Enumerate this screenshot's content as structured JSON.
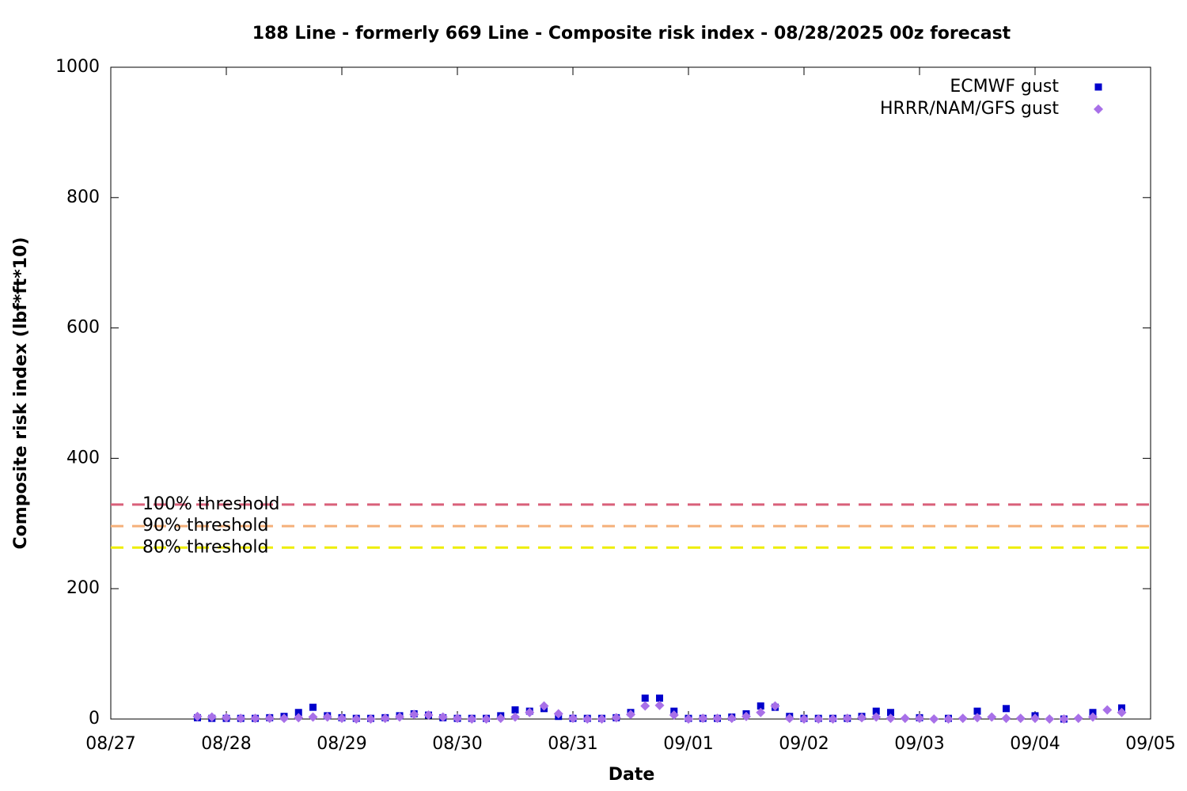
{
  "chart_data": {
    "type": "scatter",
    "title": "188 Line - formerly 669 Line - Composite risk index - 08/28/2025 00z forecast",
    "xlabel": "Date",
    "ylabel": "Composite risk index (lbf*ft*10)",
    "xlim": [
      0,
      9
    ],
    "xticks": [
      {
        "value": 0,
        "label": "08/27"
      },
      {
        "value": 1,
        "label": "08/28"
      },
      {
        "value": 2,
        "label": "08/29"
      },
      {
        "value": 3,
        "label": "08/30"
      },
      {
        "value": 4,
        "label": "08/31"
      },
      {
        "value": 5,
        "label": "09/01"
      },
      {
        "value": 6,
        "label": "09/02"
      },
      {
        "value": 7,
        "label": "09/03"
      },
      {
        "value": 8,
        "label": "09/04"
      },
      {
        "value": 9,
        "label": "09/05"
      }
    ],
    "ylim": [
      0,
      1000
    ],
    "yticks": [
      0,
      200,
      400,
      600,
      800,
      1000
    ],
    "legend": "top right",
    "thresholds": [
      {
        "label": "100% threshold",
        "value": 329,
        "color": "#d9607a"
      },
      {
        "label": "90% threshold",
        "value": 296,
        "color": "#f5b07a"
      },
      {
        "label": "80% threshold",
        "value": 263,
        "color": "#eeee00"
      }
    ],
    "series": [
      {
        "name": "ECMWF gust",
        "color": "#0000cc",
        "marker": "square",
        "x": [
          0.75,
          0.875,
          1,
          1.125,
          1.25,
          1.375,
          1.5,
          1.625,
          1.75,
          1.875,
          2,
          2.125,
          2.25,
          2.375,
          2.5,
          2.625,
          2.75,
          2.875,
          3,
          3.125,
          3.25,
          3.375,
          3.5,
          3.625,
          3.75,
          3.875,
          4,
          4.125,
          4.25,
          4.375,
          4.5,
          4.625,
          4.75,
          4.875,
          5,
          5.125,
          5.25,
          5.375,
          5.5,
          5.625,
          5.75,
          5.875,
          6,
          6.125,
          6.25,
          6.375,
          6.5,
          6.625,
          6.75,
          7,
          7.25,
          7.5,
          7.75,
          8,
          8.25,
          8.5,
          8.75
        ],
        "values": [
          2,
          1,
          1,
          1,
          1,
          2,
          4,
          10,
          18,
          5,
          2,
          1,
          1,
          2,
          5,
          8,
          6,
          2,
          1,
          1,
          1,
          5,
          14,
          12,
          16,
          4,
          1,
          1,
          1,
          2,
          10,
          32,
          32,
          12,
          1,
          1,
          1,
          3,
          8,
          20,
          18,
          4,
          1,
          1,
          1,
          1,
          4,
          12,
          10,
          2,
          1,
          12,
          16,
          5,
          0,
          10,
          17
        ]
      },
      {
        "name": "HRRR/NAM/GFS gust",
        "color": "#a870e8",
        "marker": "diamond",
        "x": [
          0.75,
          0.875,
          1,
          1.125,
          1.25,
          1.375,
          1.5,
          1.625,
          1.75,
          1.875,
          2,
          2.125,
          2.25,
          2.375,
          2.5,
          2.625,
          2.75,
          2.875,
          3,
          3.125,
          3.25,
          3.375,
          3.5,
          3.625,
          3.75,
          3.875,
          4,
          4.125,
          4.25,
          4.375,
          4.5,
          4.625,
          4.75,
          4.875,
          5,
          5.125,
          5.25,
          5.375,
          5.5,
          5.625,
          5.75,
          5.875,
          6,
          6.125,
          6.25,
          6.375,
          6.5,
          6.625,
          6.75,
          6.875,
          7,
          7.125,
          7.25,
          7.375,
          7.5,
          7.625,
          7.75,
          7.875,
          8,
          8.125,
          8.25,
          8.375,
          8.5,
          8.625,
          8.75
        ],
        "values": [
          4,
          3,
          2,
          1,
          1,
          1,
          1,
          2,
          3,
          3,
          1,
          0,
          0,
          1,
          3,
          7,
          6,
          3,
          1,
          0,
          0,
          1,
          3,
          10,
          20,
          8,
          1,
          0,
          0,
          2,
          7,
          20,
          21,
          6,
          0,
          1,
          1,
          1,
          4,
          10,
          20,
          1,
          0,
          0,
          0,
          1,
          2,
          3,
          1,
          1,
          1,
          0,
          0,
          1,
          2,
          3,
          1,
          1,
          1,
          0,
          0,
          1,
          3,
          14,
          10
        ]
      }
    ]
  }
}
